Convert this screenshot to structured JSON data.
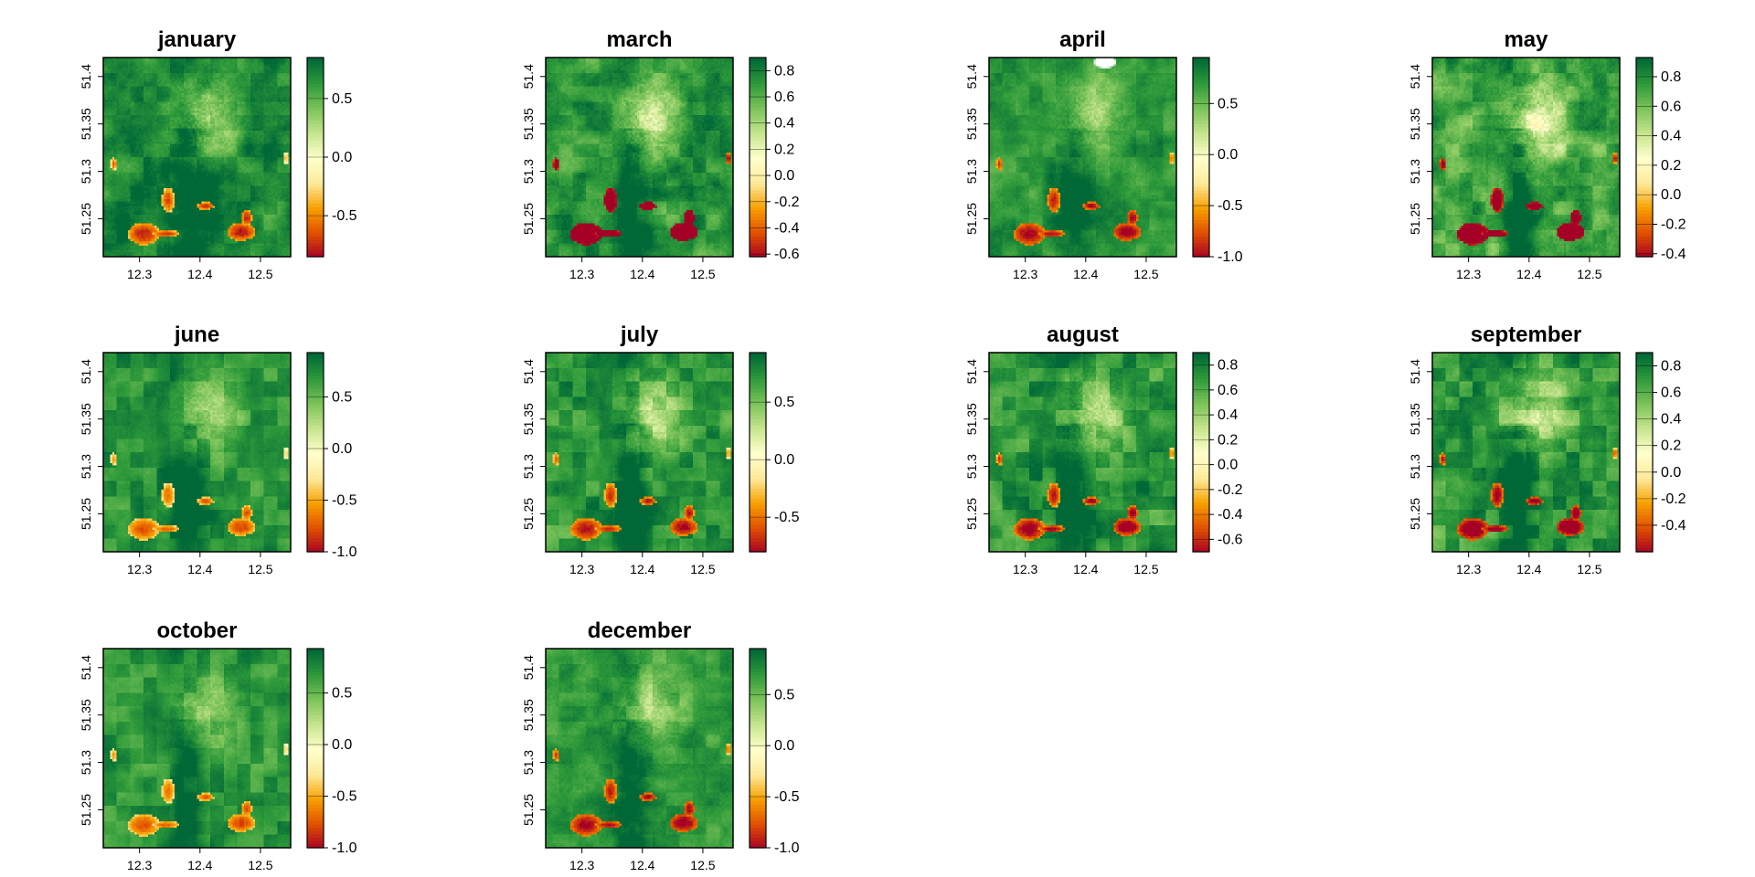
{
  "chart_data": [
    {
      "type": "heatmap",
      "title": "january",
      "x_ticks": [
        "12.3",
        "12.4",
        "12.5"
      ],
      "y_ticks": [
        "51.25",
        "51.3",
        "51.35",
        "51.4"
      ],
      "xlim": [
        12.24,
        12.55
      ],
      "ylim": [
        51.21,
        51.42
      ],
      "colorbar": {
        "min": -0.85,
        "max": 0.85,
        "ticks": [
          {
            "v": 0.5,
            "label": "0.5"
          },
          {
            "v": 0,
            "label": "0.0"
          },
          {
            "v": -0.5,
            "label": "-0.5"
          }
        ]
      }
    },
    {
      "type": "heatmap",
      "title": "march",
      "x_ticks": [
        "12.3",
        "12.4",
        "12.5"
      ],
      "y_ticks": [
        "51.25",
        "51.3",
        "51.35",
        "51.4"
      ],
      "xlim": [
        12.24,
        12.55
      ],
      "ylim": [
        51.21,
        51.42
      ],
      "colorbar": {
        "min": -0.62,
        "max": 0.9,
        "ticks": [
          {
            "v": 0.8,
            "label": "0.8"
          },
          {
            "v": 0.6,
            "label": "0.6"
          },
          {
            "v": 0.4,
            "label": "0.4"
          },
          {
            "v": 0.2,
            "label": "0.2"
          },
          {
            "v": 0,
            "label": "0.0"
          },
          {
            "v": -0.2,
            "label": "-0.2"
          },
          {
            "v": -0.4,
            "label": "-0.4"
          },
          {
            "v": -0.6,
            "label": "-0.6"
          }
        ]
      }
    },
    {
      "type": "heatmap",
      "title": "april",
      "x_ticks": [
        "12.3",
        "12.4",
        "12.5"
      ],
      "y_ticks": [
        "51.25",
        "51.3",
        "51.35",
        "51.4"
      ],
      "xlim": [
        12.24,
        12.55
      ],
      "ylim": [
        51.21,
        51.42
      ],
      "colorbar": {
        "min": -1.0,
        "max": 0.95,
        "ticks": [
          {
            "v": 0.5,
            "label": "0.5"
          },
          {
            "v": 0,
            "label": "0.0"
          },
          {
            "v": -0.5,
            "label": "-0.5"
          },
          {
            "v": -1.0,
            "label": "-1.0"
          }
        ]
      }
    },
    {
      "type": "heatmap",
      "title": "may",
      "x_ticks": [
        "12.3",
        "12.4",
        "12.5"
      ],
      "y_ticks": [
        "51.25",
        "51.3",
        "51.35",
        "51.4"
      ],
      "xlim": [
        12.24,
        12.55
      ],
      "ylim": [
        51.21,
        51.42
      ],
      "colorbar": {
        "min": -0.42,
        "max": 0.93,
        "ticks": [
          {
            "v": 0.8,
            "label": "0.8"
          },
          {
            "v": 0.6,
            "label": "0.6"
          },
          {
            "v": 0.4,
            "label": "0.4"
          },
          {
            "v": 0.2,
            "label": "0.2"
          },
          {
            "v": 0,
            "label": "0.0"
          },
          {
            "v": -0.2,
            "label": "-0.2"
          },
          {
            "v": -0.4,
            "label": "-0.4"
          }
        ]
      }
    },
    {
      "type": "heatmap",
      "title": "june",
      "x_ticks": [
        "12.3",
        "12.4",
        "12.5"
      ],
      "y_ticks": [
        "51.25",
        "51.3",
        "51.35",
        "51.4"
      ],
      "xlim": [
        12.24,
        12.55
      ],
      "ylim": [
        51.21,
        51.42
      ],
      "colorbar": {
        "min": -1.0,
        "max": 0.93,
        "ticks": [
          {
            "v": 0.5,
            "label": "0.5"
          },
          {
            "v": 0,
            "label": "0.0"
          },
          {
            "v": -0.5,
            "label": "-0.5"
          },
          {
            "v": -1.0,
            "label": "-1.0"
          }
        ]
      }
    },
    {
      "type": "heatmap",
      "title": "july",
      "x_ticks": [
        "12.3",
        "12.4",
        "12.5"
      ],
      "y_ticks": [
        "51.25",
        "51.3",
        "51.35",
        "51.4"
      ],
      "xlim": [
        12.24,
        12.55
      ],
      "ylim": [
        51.21,
        51.42
      ],
      "colorbar": {
        "min": -0.8,
        "max": 0.93,
        "ticks": [
          {
            "v": 0.5,
            "label": "0.5"
          },
          {
            "v": 0,
            "label": "0.0"
          },
          {
            "v": -0.5,
            "label": "-0.5"
          }
        ]
      }
    },
    {
      "type": "heatmap",
      "title": "august",
      "x_ticks": [
        "12.3",
        "12.4",
        "12.5"
      ],
      "y_ticks": [
        "51.25",
        "51.3",
        "51.35",
        "51.4"
      ],
      "xlim": [
        12.24,
        12.55
      ],
      "ylim": [
        51.21,
        51.42
      ],
      "colorbar": {
        "min": -0.7,
        "max": 0.9,
        "ticks": [
          {
            "v": 0.8,
            "label": "0.8"
          },
          {
            "v": 0.6,
            "label": "0.6"
          },
          {
            "v": 0.4,
            "label": "0.4"
          },
          {
            "v": 0.2,
            "label": "0.2"
          },
          {
            "v": 0,
            "label": "0.0"
          },
          {
            "v": -0.2,
            "label": "-0.2"
          },
          {
            "v": -0.4,
            "label": "-0.4"
          },
          {
            "v": -0.6,
            "label": "-0.6"
          }
        ]
      }
    },
    {
      "type": "heatmap",
      "title": "september",
      "x_ticks": [
        "12.3",
        "12.4",
        "12.5"
      ],
      "y_ticks": [
        "51.25",
        "51.3",
        "51.35",
        "51.4"
      ],
      "xlim": [
        12.24,
        12.55
      ],
      "ylim": [
        51.21,
        51.42
      ],
      "colorbar": {
        "min": -0.6,
        "max": 0.9,
        "ticks": [
          {
            "v": 0.8,
            "label": "0.8"
          },
          {
            "v": 0.6,
            "label": "0.6"
          },
          {
            "v": 0.4,
            "label": "0.4"
          },
          {
            "v": 0.2,
            "label": "0.2"
          },
          {
            "v": 0,
            "label": "0.0"
          },
          {
            "v": -0.2,
            "label": "-0.2"
          },
          {
            "v": -0.4,
            "label": "-0.4"
          }
        ]
      }
    },
    {
      "type": "heatmap",
      "title": "october",
      "x_ticks": [
        "12.3",
        "12.4",
        "12.5"
      ],
      "y_ticks": [
        "51.25",
        "51.3",
        "51.35",
        "51.4"
      ],
      "xlim": [
        12.24,
        12.55
      ],
      "ylim": [
        51.21,
        51.42
      ],
      "colorbar": {
        "min": -1.0,
        "max": 0.93,
        "ticks": [
          {
            "v": 0.5,
            "label": "0.5"
          },
          {
            "v": 0,
            "label": "0.0"
          },
          {
            "v": -0.5,
            "label": "-0.5"
          },
          {
            "v": -1.0,
            "label": "-1.0"
          }
        ]
      }
    },
    {
      "type": "heatmap",
      "title": "december",
      "x_ticks": [
        "12.3",
        "12.4",
        "12.5"
      ],
      "y_ticks": [
        "51.25",
        "51.3",
        "51.35",
        "51.4"
      ],
      "xlim": [
        12.24,
        12.55
      ],
      "ylim": [
        51.21,
        51.42
      ],
      "colorbar": {
        "min": -1.0,
        "max": 0.95,
        "ticks": [
          {
            "v": 0.5,
            "label": "0.5"
          },
          {
            "v": 0,
            "label": "0.0"
          },
          {
            "v": -0.5,
            "label": "-0.5"
          },
          {
            "v": -1.0,
            "label": "-1.0"
          }
        ]
      }
    }
  ],
  "palette": [
    "#a50026",
    "#e04f00",
    "#f7a000",
    "#fdea9a",
    "#ffffcc",
    "#c7e58f",
    "#7cc35a",
    "#2e9a3a",
    "#006837"
  ]
}
